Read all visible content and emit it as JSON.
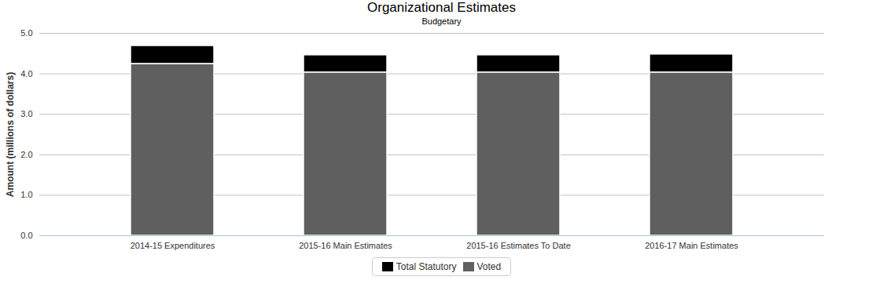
{
  "chart_data": {
    "type": "bar",
    "title": "Organizational Estimates",
    "subtitle": "Budgetary",
    "y_label": "Amount (millions of dollars)",
    "categories": [
      "2014-15 Expenditures",
      "2015-16 Main Estimates",
      "2015-16 Estimates To Date",
      "2016-17 Main Estimates"
    ],
    "series": [
      {
        "name": "Total Statutory",
        "color": "#000000",
        "values": [
          0.45,
          0.43,
          0.43,
          0.45
        ]
      },
      {
        "name": "Voted",
        "color": "#5f5f5f",
        "values": [
          4.24,
          4.03,
          4.03,
          4.03
        ]
      }
    ],
    "stacked": true,
    "grid": true,
    "legend": "bottom",
    "ylim": [
      0,
      5
    ],
    "yticks": [
      0,
      1,
      2,
      3,
      4,
      5
    ]
  }
}
